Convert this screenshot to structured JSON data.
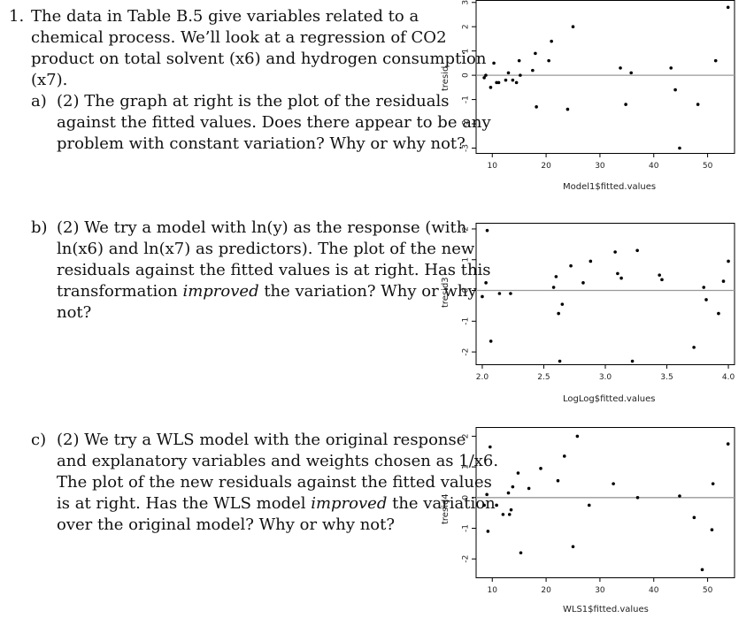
{
  "question": {
    "number": "1.",
    "intro_lines": [
      "The data in Table B.5 give variables related to a",
      "chemical process. We’ll look at a regression of CO2",
      "product on total solvent (x6) and hydrogen consumption",
      "(x7)."
    ],
    "part_a": {
      "label": "a)",
      "lines": [
        "(2) The graph at right is the plot of the residuals",
        "against the fitted values. Does there appear to be any",
        "problem with constant variation? Why or why not?"
      ]
    },
    "part_b": {
      "label": "b)",
      "lines": [
        "(2) We try a model with ln(y) as the response (with",
        "ln(x6) and ln(x7) as predictors). The plot of the new",
        "residuals against the fitted values is at right. Has this",
        "transformation ",
        "not?"
      ],
      "emph": "improved",
      "line4_rest": " the variation? Why or why"
    },
    "part_c": {
      "label": "c)",
      "lines": [
        "(2) We try a WLS model with the original response",
        "and explanatory variables and weights chosen as 1/x6.",
        "The plot of the new residuals against the fitted values",
        "is at right. Has the WLS model ",
        "over the original model? Why or why not?"
      ],
      "emph": "improved",
      "line4_rest": " the variation"
    }
  },
  "chart_data": [
    {
      "type": "scatter",
      "xlabel": "Model1$fitted.values",
      "ylabel": "tresid",
      "xticks": [
        10,
        20,
        30,
        40,
        50
      ],
      "yticks": [
        -3,
        -2,
        -1,
        0,
        1,
        2,
        3
      ],
      "xlim": [
        7,
        55
      ],
      "ylim": [
        -3.2,
        3.1
      ],
      "hline": 0,
      "points": [
        [
          8.5,
          -0.1
        ],
        [
          8.8,
          0.0
        ],
        [
          9.7,
          -0.5
        ],
        [
          10.3,
          0.5
        ],
        [
          10.8,
          -0.3
        ],
        [
          11.2,
          -0.3
        ],
        [
          12.5,
          -0.2
        ],
        [
          13.0,
          0.1
        ],
        [
          13.8,
          -0.2
        ],
        [
          14.5,
          -0.3
        ],
        [
          15.2,
          0.0
        ],
        [
          15.0,
          0.6
        ],
        [
          17.5,
          0.2
        ],
        [
          18.0,
          0.9
        ],
        [
          18.2,
          -1.3
        ],
        [
          20.5,
          0.6
        ],
        [
          21.0,
          1.4
        ],
        [
          24.0,
          -1.4
        ],
        [
          25.0,
          2.0
        ],
        [
          33.8,
          0.3
        ],
        [
          34.8,
          -1.2
        ],
        [
          35.8,
          0.1
        ],
        [
          43.2,
          0.3
        ],
        [
          44.0,
          -0.6
        ],
        [
          44.8,
          -3.0
        ],
        [
          48.2,
          -1.2
        ],
        [
          51.5,
          0.6
        ],
        [
          53.8,
          2.8
        ]
      ]
    },
    {
      "type": "scatter",
      "xlabel": "LogLog$fitted.values",
      "ylabel": "tresid3",
      "xticks": [
        "2.0",
        "2.5",
        "3.0",
        "3.5",
        "4.0"
      ],
      "yticks": [
        -2,
        -1,
        0,
        1,
        2
      ],
      "xlim": [
        1.95,
        4.05
      ],
      "ylim": [
        -2.4,
        2.2
      ],
      "hline": 0,
      "points": [
        [
          2.0,
          -0.2
        ],
        [
          2.03,
          0.25
        ],
        [
          2.04,
          1.95
        ],
        [
          2.07,
          -1.65
        ],
        [
          2.14,
          -0.1
        ],
        [
          2.23,
          -0.1
        ],
        [
          2.58,
          0.1
        ],
        [
          2.6,
          0.45
        ],
        [
          2.62,
          -0.75
        ],
        [
          2.63,
          -2.3
        ],
        [
          2.65,
          -0.45
        ],
        [
          2.72,
          0.8
        ],
        [
          2.82,
          0.25
        ],
        [
          2.88,
          0.95
        ],
        [
          3.08,
          1.25
        ],
        [
          3.1,
          0.55
        ],
        [
          3.13,
          0.4
        ],
        [
          3.22,
          -2.3
        ],
        [
          3.26,
          1.3
        ],
        [
          3.44,
          0.5
        ],
        [
          3.46,
          0.35
        ],
        [
          3.72,
          -1.85
        ],
        [
          3.8,
          0.1
        ],
        [
          3.82,
          -0.3
        ],
        [
          3.92,
          -0.75
        ],
        [
          3.96,
          0.3
        ],
        [
          4.0,
          0.95
        ]
      ]
    },
    {
      "type": "scatter",
      "xlabel": "WLS1$fitted.values",
      "ylabel": "tresid4",
      "xticks": [
        10,
        20,
        30,
        40,
        50
      ],
      "yticks": [
        -2,
        -1,
        0,
        1,
        2
      ],
      "xlim": [
        7,
        55
      ],
      "ylim": [
        -2.6,
        2.3
      ],
      "hline": 0,
      "points": [
        [
          8.5,
          -0.25
        ],
        [
          9.0,
          0.1
        ],
        [
          9.2,
          -1.1
        ],
        [
          9.6,
          1.65
        ],
        [
          10.8,
          -0.25
        ],
        [
          12.0,
          -0.55
        ],
        [
          13.0,
          0.15
        ],
        [
          13.2,
          -0.55
        ],
        [
          13.5,
          -0.4
        ],
        [
          13.8,
          0.35
        ],
        [
          14.8,
          0.8
        ],
        [
          15.3,
          -1.8
        ],
        [
          16.8,
          0.3
        ],
        [
          19.0,
          0.95
        ],
        [
          22.2,
          0.55
        ],
        [
          23.4,
          1.35
        ],
        [
          25.0,
          -1.6
        ],
        [
          25.8,
          2.0
        ],
        [
          28.0,
          -0.25
        ],
        [
          32.5,
          0.45
        ],
        [
          37.0,
          0.0
        ],
        [
          44.8,
          0.05
        ],
        [
          47.5,
          -0.65
        ],
        [
          49.0,
          -2.35
        ],
        [
          50.8,
          -1.05
        ],
        [
          51.0,
          0.45
        ],
        [
          53.8,
          1.75
        ]
      ]
    }
  ]
}
